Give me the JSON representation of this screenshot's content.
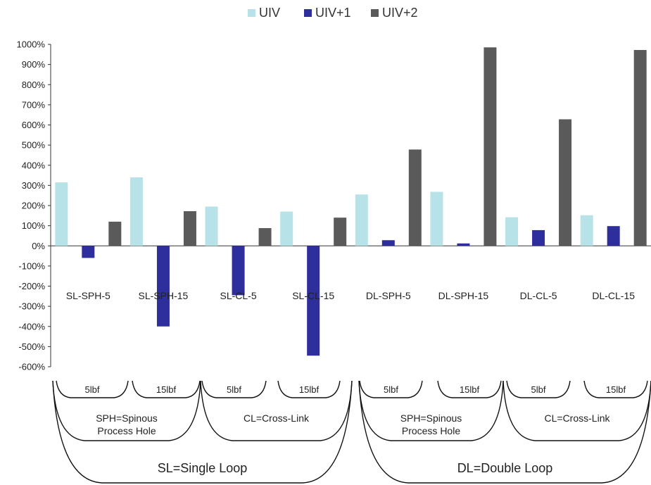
{
  "chart_data": {
    "type": "bar",
    "categories": [
      "SL-SPH-5",
      "SL-SPH-15",
      "SL-CL-5",
      "SL-CL-15",
      "DL-SPH-5",
      "DL-SPH-15",
      "DL-CL-5",
      "DL-CL-15"
    ],
    "series": [
      {
        "name": "UIV",
        "color": "#B7E3E8",
        "values": [
          315,
          340,
          195,
          170,
          255,
          268,
          142,
          152
        ]
      },
      {
        "name": "UIV+1",
        "color": "#2E2E9C",
        "values": [
          -60,
          -400,
          -245,
          -545,
          28,
          12,
          78,
          98
        ]
      },
      {
        "name": "UIV+2",
        "color": "#5A5A5A",
        "values": [
          120,
          172,
          88,
          140,
          478,
          985,
          628,
          972
        ]
      }
    ],
    "ylim": [
      -600,
      1000
    ],
    "yticks": [
      "-600%",
      "-500%",
      "-400%",
      "-300%",
      "-200%",
      "-100%",
      "0%",
      "100%",
      "200%",
      "300%",
      "400%",
      "500%",
      "600%",
      "700%",
      "800%",
      "900%",
      "1000%"
    ],
    "grid": false,
    "legend_position": "top-center"
  },
  "groupings": {
    "loads": [
      "5lbf",
      "15lbf",
      "5lbf",
      "15lbf",
      "5lbf",
      "15lbf",
      "5lbf",
      "15lbf"
    ],
    "methods": [
      [
        "SPH=Spinous",
        "Process Hole"
      ],
      [
        "CL=Cross-Link"
      ],
      [
        "SPH=Spinous",
        "Process Hole"
      ],
      [
        "CL=Cross-Link"
      ]
    ],
    "loops": [
      "SL=Single Loop",
      "DL=Double Loop"
    ]
  }
}
